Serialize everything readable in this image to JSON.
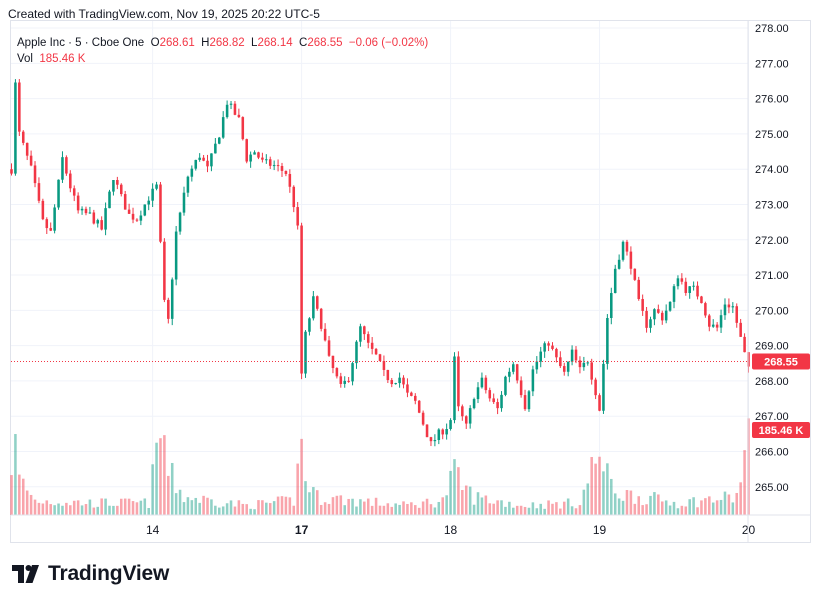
{
  "header": {
    "credit": "Created with TradingView.com, Nov 19, 2025 20:22 UTC-5"
  },
  "legend": {
    "symbol": "Apple Inc · 5 · Cboe One",
    "o_label": "O",
    "o_value": "268.61",
    "h_label": "H",
    "h_value": "268.82",
    "l_label": "L",
    "l_value": "268.14",
    "c_label": "C",
    "c_value": "268.55",
    "change": "−0.06 (−0.02%)",
    "vol_label": "Vol",
    "vol_value": "185.46 K"
  },
  "footer": {
    "brand": "TradingView"
  },
  "colors": {
    "up": "#089981",
    "down": "#f23645",
    "grid": "#f0f3fa",
    "axis_text": "#131722",
    "price_line": "#f23645"
  },
  "chart_data": {
    "type": "candlestick",
    "title": "Apple Inc · 5 · Cboe One",
    "xlabel": "",
    "ylabel": "",
    "ylim": [
      264.2,
      278.2
    ],
    "y_ticks": [
      "265.00",
      "266.00",
      "267.00",
      "268.00",
      "269.00",
      "270.00",
      "271.00",
      "272.00",
      "273.00",
      "274.00",
      "275.00",
      "276.00",
      "277.00",
      "278.00"
    ],
    "x_ticks": [
      {
        "label": "14",
        "bar": 36
      },
      {
        "label": "17",
        "bar": 74
      },
      {
        "label": "18",
        "bar": 112
      },
      {
        "label": "19",
        "bar": 150
      },
      {
        "label": "20",
        "bar": 188
      }
    ],
    "bar_count": 188,
    "last_price": "268.55",
    "last_volume": "185.46 K",
    "legend": "none",
    "grid": true,
    "path_keypoints": [
      [
        0,
        274.0
      ],
      [
        1,
        276.4
      ],
      [
        2,
        275.0
      ],
      [
        5,
        274.0
      ],
      [
        8,
        272.5
      ],
      [
        10,
        272.2
      ],
      [
        13,
        274.3
      ],
      [
        15,
        273.5
      ],
      [
        17,
        272.8
      ],
      [
        20,
        272.7
      ],
      [
        23,
        272.3
      ],
      [
        26,
        273.8
      ],
      [
        28,
        273.2
      ],
      [
        30,
        272.7
      ],
      [
        32,
        272.6
      ],
      [
        35,
        273.2
      ],
      [
        37,
        273.5
      ],
      [
        39,
        270.2
      ],
      [
        40,
        269.7
      ],
      [
        42,
        272.2
      ],
      [
        45,
        273.8
      ],
      [
        48,
        274.4
      ],
      [
        50,
        274.0
      ],
      [
        53,
        275.0
      ],
      [
        55,
        275.9
      ],
      [
        58,
        275.4
      ],
      [
        60,
        274.3
      ],
      [
        62,
        274.5
      ],
      [
        64,
        274.2
      ],
      [
        67,
        274.1
      ],
      [
        70,
        273.9
      ],
      [
        72,
        273.0
      ],
      [
        73,
        272.3
      ],
      [
        74,
        268.2
      ],
      [
        75,
        269.3
      ],
      [
        77,
        270.3
      ],
      [
        79,
        269.6
      ],
      [
        81,
        268.6
      ],
      [
        84,
        267.8
      ],
      [
        86,
        268.1
      ],
      [
        89,
        269.5
      ],
      [
        91,
        269.0
      ],
      [
        93,
        268.7
      ],
      [
        95,
        268.2
      ],
      [
        97,
        268.0
      ],
      [
        99,
        268.1
      ],
      [
        101,
        267.6
      ],
      [
        103,
        267.4
      ],
      [
        105,
        266.8
      ],
      [
        107,
        266.2
      ],
      [
        109,
        266.5
      ],
      [
        111,
        266.7
      ],
      [
        112,
        266.9
      ],
      [
        113,
        268.6
      ],
      [
        114,
        267.2
      ],
      [
        116,
        266.7
      ],
      [
        118,
        267.6
      ],
      [
        120,
        268.0
      ],
      [
        122,
        267.5
      ],
      [
        124,
        267.2
      ],
      [
        126,
        268.1
      ],
      [
        128,
        268.5
      ],
      [
        131,
        267.3
      ],
      [
        133,
        268.3
      ],
      [
        135,
        268.8
      ],
      [
        137,
        269.1
      ],
      [
        139,
        268.6
      ],
      [
        141,
        268.2
      ],
      [
        143,
        268.8
      ],
      [
        145,
        268.3
      ],
      [
        147,
        268.6
      ],
      [
        149,
        267.7
      ],
      [
        150,
        267.2
      ],
      [
        152,
        269.8
      ],
      [
        154,
        271.2
      ],
      [
        156,
        271.9
      ],
      [
        158,
        271.3
      ],
      [
        160,
        270.2
      ],
      [
        162,
        269.6
      ],
      [
        164,
        270.0
      ],
      [
        166,
        269.8
      ],
      [
        168,
        270.2
      ],
      [
        170,
        271.0
      ],
      [
        172,
        270.6
      ],
      [
        174,
        270.6
      ],
      [
        176,
        270.3
      ],
      [
        178,
        269.6
      ],
      [
        180,
        269.5
      ],
      [
        182,
        270.2
      ],
      [
        184,
        270.1
      ],
      [
        186,
        269.2
      ],
      [
        188,
        268.3
      ]
    ],
    "volume_keypoints": [
      [
        0,
        0.45
      ],
      [
        1,
        0.55
      ],
      [
        2,
        0.3
      ],
      [
        6,
        0.12
      ],
      [
        20,
        0.1
      ],
      [
        35,
        0.1
      ],
      [
        38,
        0.7
      ],
      [
        39,
        0.6
      ],
      [
        40,
        0.35
      ],
      [
        44,
        0.15
      ],
      [
        60,
        0.08
      ],
      [
        72,
        0.12
      ],
      [
        74,
        0.6
      ],
      [
        75,
        0.3
      ],
      [
        78,
        0.15
      ],
      [
        100,
        0.08
      ],
      [
        110,
        0.12
      ],
      [
        113,
        0.35
      ],
      [
        114,
        0.28
      ],
      [
        118,
        0.15
      ],
      [
        130,
        0.08
      ],
      [
        145,
        0.1
      ],
      [
        150,
        0.55
      ],
      [
        151,
        0.35
      ],
      [
        155,
        0.18
      ],
      [
        170,
        0.1
      ],
      [
        185,
        0.15
      ],
      [
        188,
        0.7
      ]
    ]
  }
}
